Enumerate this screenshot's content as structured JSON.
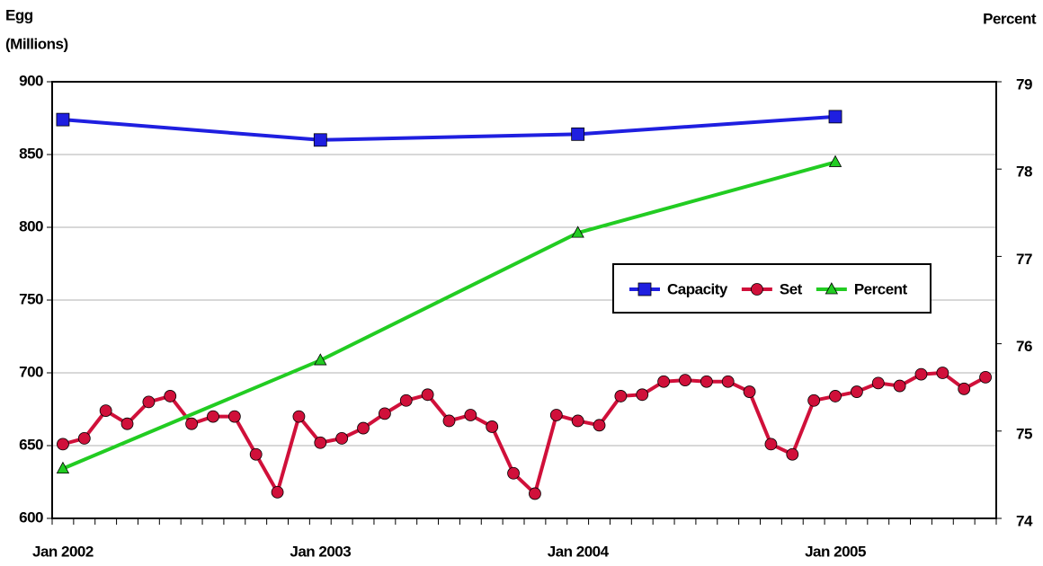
{
  "chart_data": {
    "type": "line",
    "ylabel": [
      "Egg",
      "(Millions)"
    ],
    "y2label": "Percent",
    "categories": [
      "Jan 2002",
      null,
      null,
      null,
      null,
      null,
      null,
      null,
      null,
      null,
      null,
      null,
      "Jan 2003",
      null,
      null,
      null,
      null,
      null,
      null,
      null,
      null,
      null,
      null,
      null,
      "Jan 2004",
      null,
      null,
      null,
      null,
      null,
      null,
      null,
      null,
      null,
      null,
      null,
      "Jan 2005",
      null,
      null,
      null,
      null,
      null,
      null,
      null
    ],
    "series": [
      {
        "name": "Capacity",
        "color": "#1f1fe0",
        "marker": "square",
        "values": [
          874,
          null,
          null,
          null,
          null,
          null,
          null,
          null,
          null,
          null,
          null,
          null,
          860,
          null,
          null,
          null,
          null,
          null,
          null,
          null,
          null,
          null,
          null,
          null,
          864,
          null,
          null,
          null,
          null,
          null,
          null,
          null,
          null,
          null,
          null,
          null,
          876,
          null,
          null,
          null,
          null,
          null,
          null,
          null
        ]
      },
      {
        "name": "Set",
        "color": "#d0103a",
        "marker": "circle",
        "values": [
          651,
          655,
          674,
          665,
          680,
          684,
          665,
          670,
          670,
          644,
          618,
          670,
          652,
          655,
          662,
          672,
          681,
          685,
          667,
          671,
          663,
          631,
          617,
          671,
          667,
          664,
          684,
          685,
          694,
          695,
          694,
          694,
          687,
          651,
          644,
          681,
          684,
          687,
          693,
          691,
          699,
          700,
          689,
          697
        ]
      },
      {
        "name": "Percent",
        "color": "#22cc22",
        "marker": "triangle",
        "axis": "y2",
        "values": [
          74.57,
          null,
          null,
          null,
          null,
          null,
          null,
          null,
          null,
          null,
          null,
          null,
          75.81,
          null,
          null,
          null,
          null,
          null,
          null,
          null,
          null,
          null,
          null,
          null,
          77.27,
          null,
          null,
          null,
          null,
          null,
          null,
          null,
          null,
          null,
          null,
          null,
          78.08,
          null,
          null,
          null,
          null,
          null,
          null,
          null
        ]
      }
    ],
    "ylim": [
      600,
      900
    ],
    "yticks": [
      600,
      650,
      700,
      750,
      800,
      850,
      900
    ],
    "y2lim": [
      74,
      79
    ],
    "y2ticks": [
      74,
      75,
      76,
      77,
      78,
      79
    ],
    "grid": true
  }
}
